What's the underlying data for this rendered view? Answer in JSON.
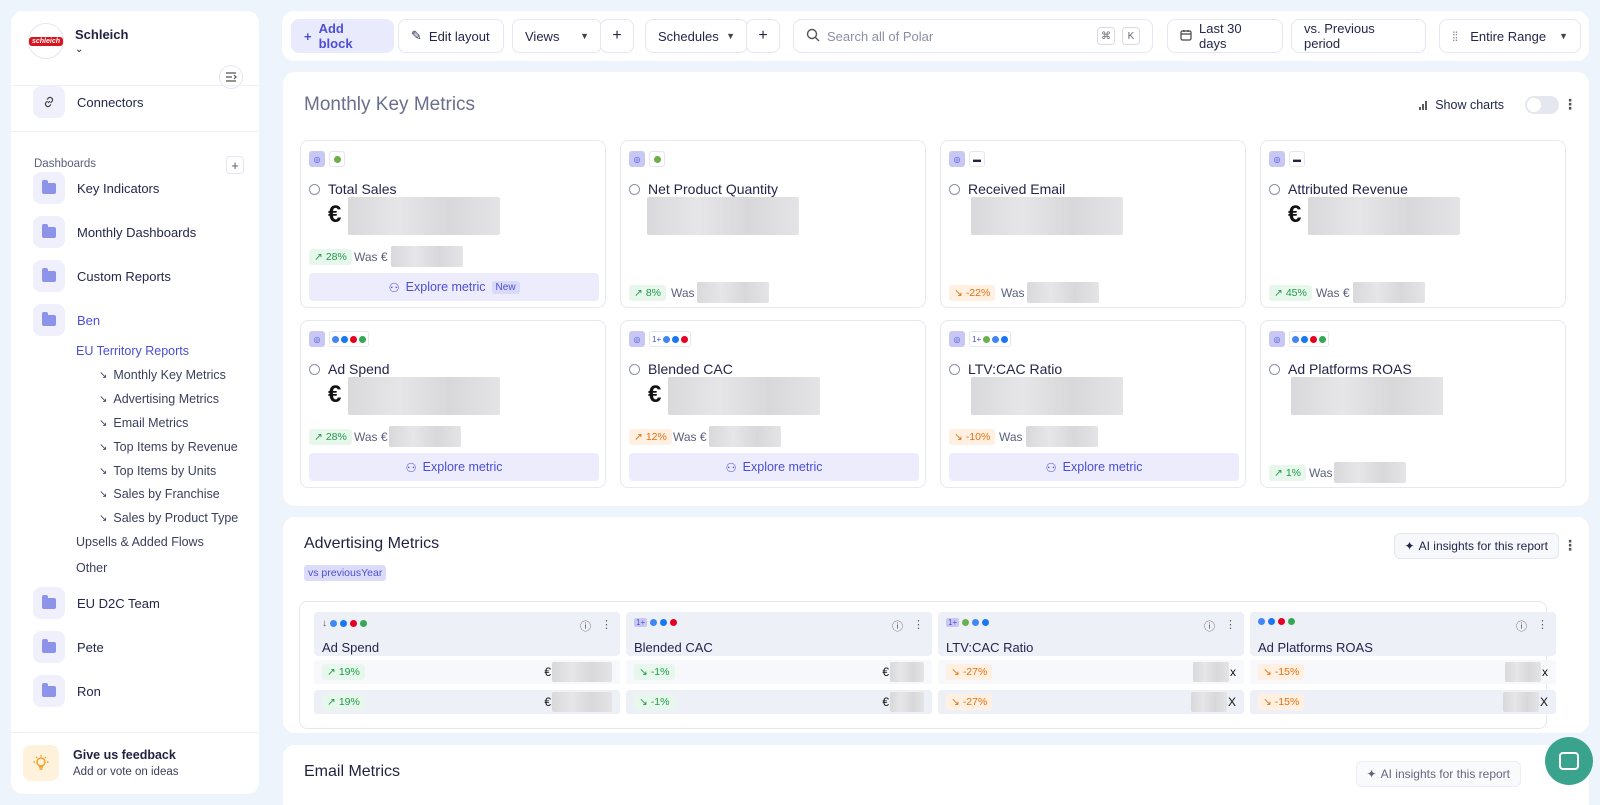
{
  "brand": {
    "name": "Schleich",
    "logo_text": "schleich"
  },
  "sidebar": {
    "connectors": "Connectors",
    "dashboards_label": "Dashboards",
    "folders": [
      {
        "label": "Key Indicators"
      },
      {
        "label": "Monthly Dashboards"
      },
      {
        "label": "Custom Reports"
      },
      {
        "label": "Ben"
      }
    ],
    "ben_sub": [
      "EU Territory Reports"
    ],
    "reports": [
      "Monthly Key Metrics",
      "Advertising Metrics",
      "Email Metrics",
      "Top Items by Revenue",
      "Top Items by Units",
      "Sales by Franchise",
      "Sales by Product Type"
    ],
    "ben_extra": [
      "Upsells & Added Flows",
      "Other"
    ],
    "folders_bottom": [
      {
        "label": "EU D2C Team"
      },
      {
        "label": "Pete"
      },
      {
        "label": "Ron"
      }
    ],
    "feedback_title": "Give us feedback",
    "feedback_sub": "Add or vote on ideas"
  },
  "toolbar": {
    "add_block": "Add block",
    "edit_layout": "Edit layout",
    "views": "Views",
    "schedules": "Schedules",
    "search_placeholder": "Search all of Polar",
    "kbd_cmd": "⌘",
    "kbd_k": "K",
    "date_range": "Last 30 days",
    "compare": "vs. Previous period",
    "range": "Entire Range"
  },
  "monthly": {
    "title": "Monthly Key Metrics",
    "show_charts": "Show charts",
    "cards": [
      {
        "name": "Total Sales",
        "currency": "€",
        "change": "28%",
        "dir": "up",
        "was": "Was €",
        "explore": "Explore metric",
        "badge": "New"
      },
      {
        "name": "Net Product Quantity",
        "currency": "",
        "change": "8%",
        "dir": "up",
        "was": "Was",
        "explore": "",
        "badge": ""
      },
      {
        "name": "Received Email",
        "currency": "",
        "change": "-22%",
        "dir": "down",
        "was": "Was",
        "explore": "",
        "badge": ""
      },
      {
        "name": "Attributed Revenue",
        "currency": "€",
        "change": "45%",
        "dir": "up",
        "was": "Was €",
        "explore": "",
        "badge": ""
      },
      {
        "name": "Ad Spend",
        "currency": "€",
        "change": "28%",
        "dir": "up",
        "was": "Was €",
        "explore": "Explore metric",
        "badge": ""
      },
      {
        "name": "Blended CAC",
        "currency": "€",
        "change": "12%",
        "dir": "down",
        "was": "Was €",
        "explore": "Explore metric",
        "badge": ""
      },
      {
        "name": "LTV:CAC Ratio",
        "currency": "",
        "change": "-10%",
        "dir": "down",
        "was": "Was",
        "explore": "Explore metric",
        "badge": ""
      },
      {
        "name": "Ad Platforms ROAS",
        "currency": "",
        "change": "1%",
        "dir": "up",
        "was": "Was",
        "explore": "",
        "badge": ""
      }
    ]
  },
  "advertising": {
    "title": "Advertising Metrics",
    "ai_button": "AI insights for this report",
    "vs_badge": "vs previousYear",
    "columns": [
      {
        "name": "Ad Spend",
        "rows": [
          {
            "change": "19%",
            "dir": "up",
            "prefix": "€",
            "suffix": ""
          },
          {
            "change": "19%",
            "dir": "up",
            "prefix": "€",
            "suffix": ""
          }
        ]
      },
      {
        "name": "Blended CAC",
        "rows": [
          {
            "change": "-1%",
            "dir": "up",
            "prefix": "€",
            "suffix": ""
          },
          {
            "change": "-1%",
            "dir": "up",
            "prefix": "€",
            "suffix": ""
          }
        ]
      },
      {
        "name": "LTV:CAC Ratio",
        "rows": [
          {
            "change": "-27%",
            "dir": "down",
            "prefix": "",
            "suffix": "x"
          },
          {
            "change": "-27%",
            "dir": "down",
            "prefix": "",
            "suffix": "X"
          }
        ]
      },
      {
        "name": "Ad Platforms ROAS",
        "rows": [
          {
            "change": "-15%",
            "dir": "down",
            "prefix": "",
            "suffix": "x"
          },
          {
            "change": "-15%",
            "dir": "down",
            "prefix": "",
            "suffix": "X"
          }
        ]
      }
    ]
  },
  "email": {
    "title": "Email Metrics",
    "ai_button": "AI insights for this report"
  },
  "colors": {
    "accent": "#4c4fd6",
    "up": "#1d9a4a",
    "down": "#e2700e",
    "chat": "#3aa38e"
  }
}
